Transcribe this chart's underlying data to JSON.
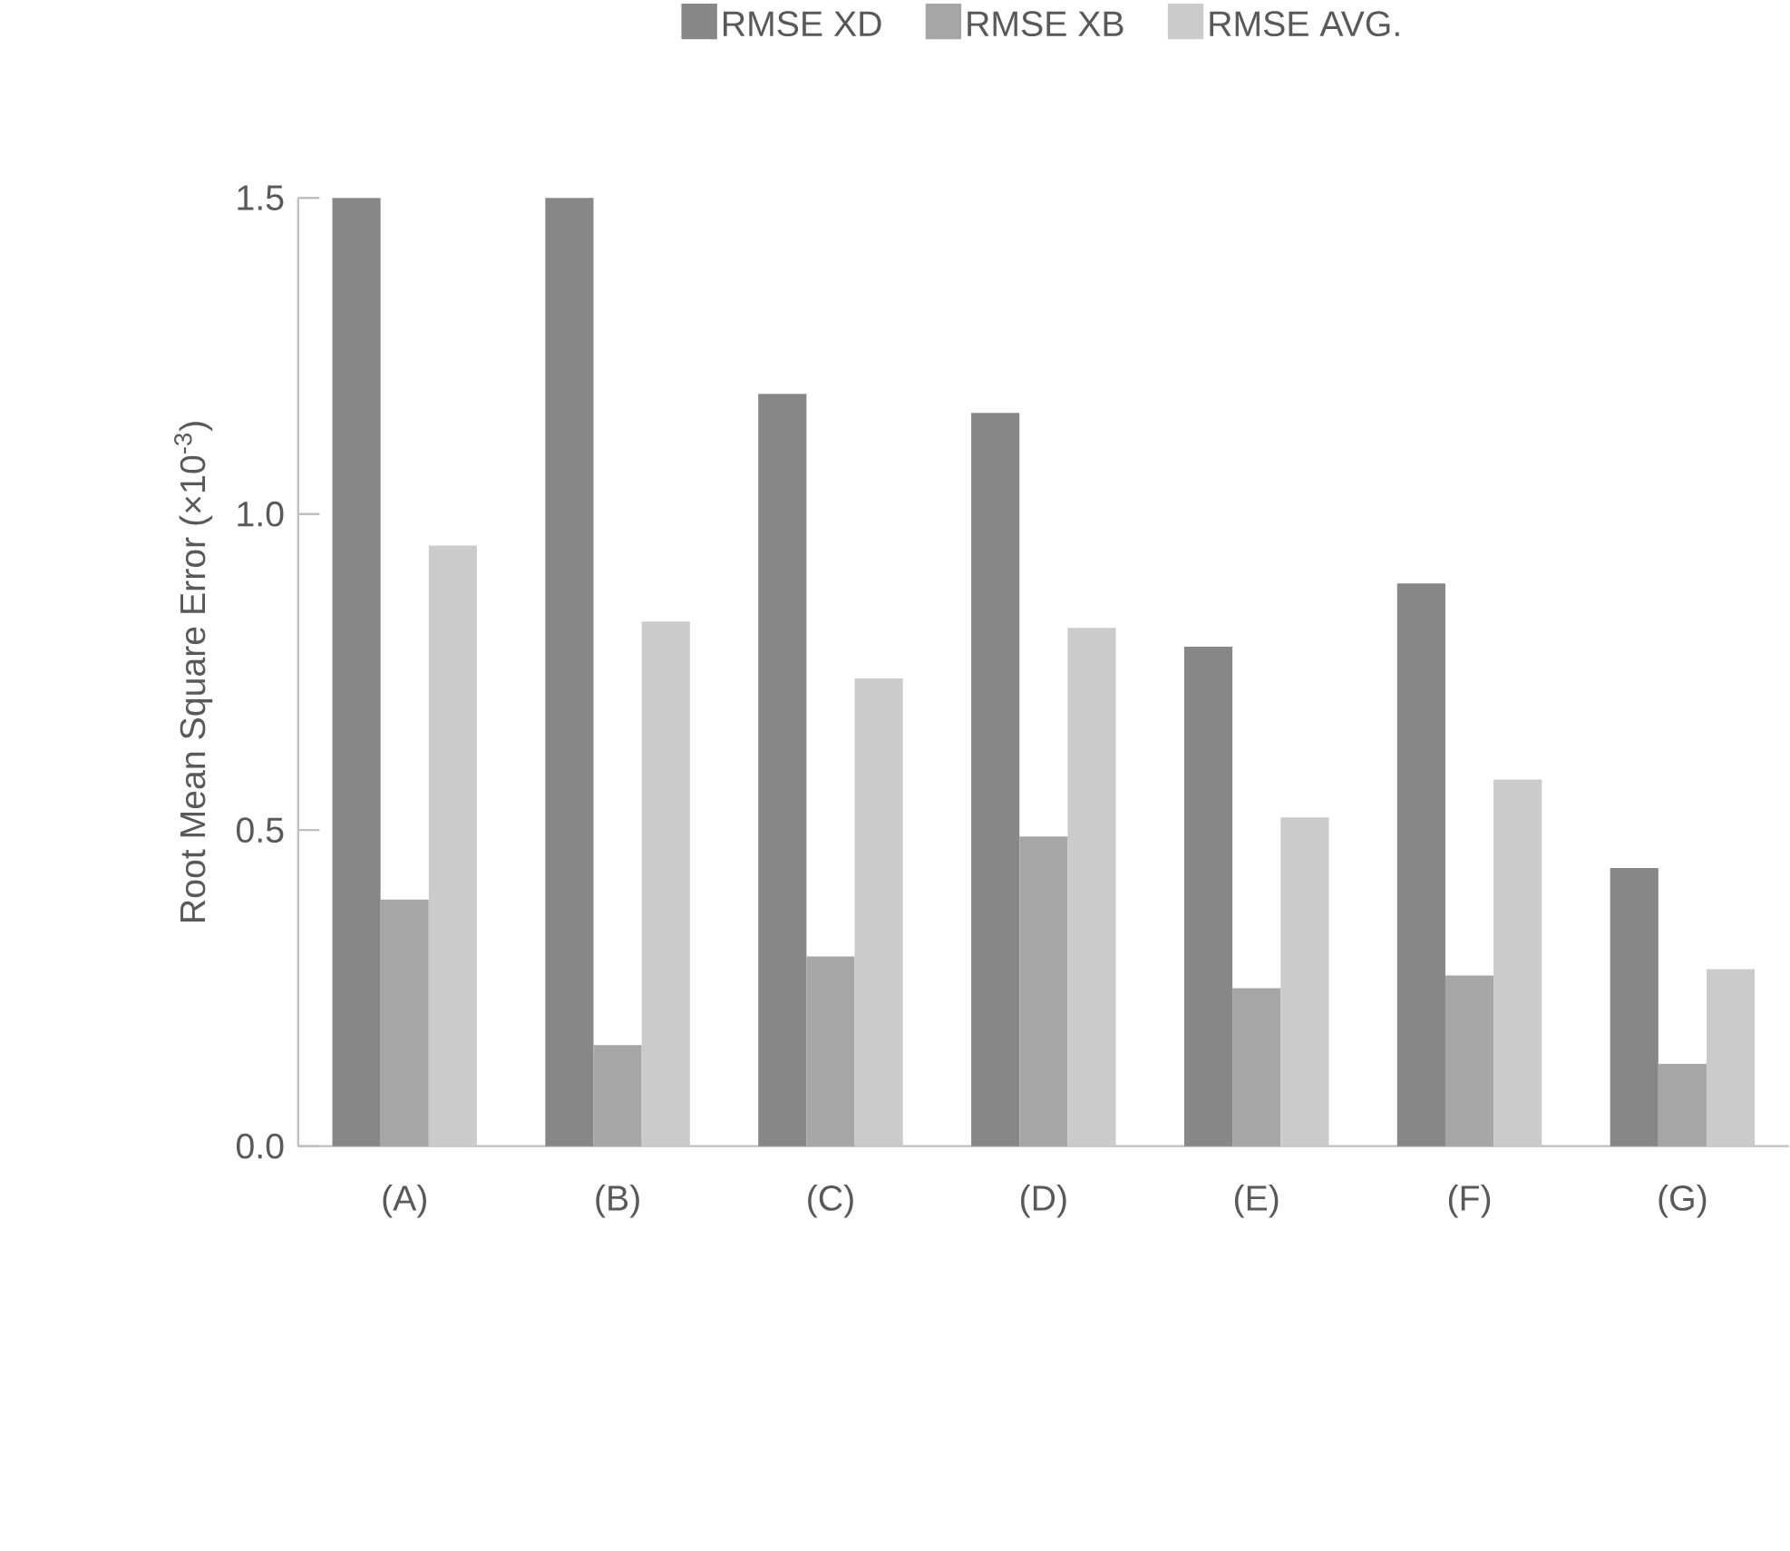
{
  "chart_data": {
    "type": "bar",
    "ylabel": "Root Mean Square Error (×10$^{-3}$)",
    "categories": [
      "(A)",
      "(B)",
      "(C)",
      "(D)",
      "(E)",
      "(F)",
      "(G)"
    ],
    "series": [
      {
        "name": "RMSE XD",
        "color": "#878787",
        "values": [
          1.5,
          1.5,
          1.19,
          1.16,
          0.79,
          0.89,
          0.44
        ]
      },
      {
        "name": "RMSE XB",
        "color": "#a6a6a6",
        "values": [
          0.39,
          0.16,
          0.3,
          0.49,
          0.25,
          0.27,
          0.13
        ]
      },
      {
        "name": "RMSE AVG.",
        "color": "#cbcbcb",
        "values": [
          0.95,
          0.83,
          0.74,
          0.82,
          0.52,
          0.58,
          0.28
        ]
      }
    ],
    "ylim": [
      0,
      1.5
    ],
    "yticks": [
      {
        "value": 0,
        "label": "0.0"
      },
      0.5,
      {
        "value": 1,
        "label": "1.0"
      },
      1.5
    ],
    "grid": false,
    "legend": "top"
  }
}
